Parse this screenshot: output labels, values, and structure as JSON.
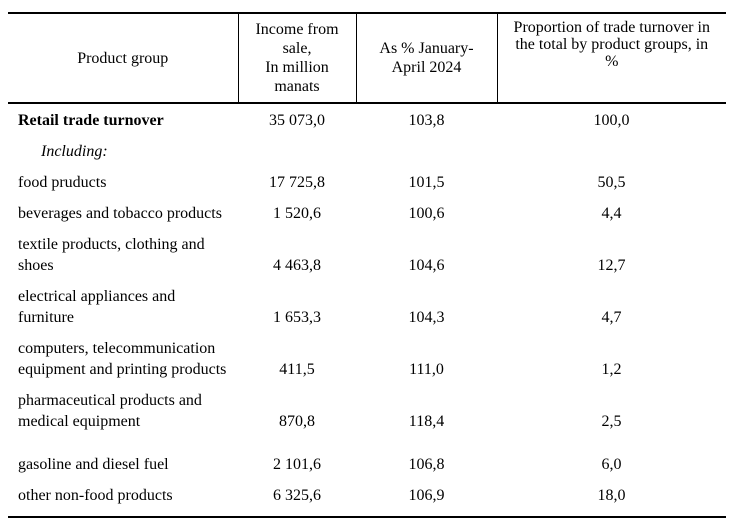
{
  "table": {
    "columns": [
      {
        "label": "Product group"
      },
      {
        "label": "Income from\nsale,\nIn million\nmanats"
      },
      {
        "label": "As % January-\nApril 2024"
      },
      {
        "label": "Proportion of trade turnover in\nthe total by product groups, in\n%"
      }
    ],
    "rows": [
      {
        "name": "Retail trade turnover",
        "income": "35 073,0",
        "percent": "103,8",
        "proportion": "100,0"
      },
      {
        "name": "Including:",
        "income": "",
        "percent": "",
        "proportion": ""
      },
      {
        "name": "food pruducts",
        "income": "17 725,8",
        "percent": "101,5",
        "proportion": "50,5"
      },
      {
        "name": "beverages and tobacco products",
        "income": "1 520,6",
        "percent": "100,6",
        "proportion": "4,4"
      },
      {
        "name": "textile products, clothing and\nshoes",
        "income": "4 463,8",
        "percent": "104,6",
        "proportion": "12,7"
      },
      {
        "name": "electrical appliances and\nfurniture",
        "income": "1 653,3",
        "percent": "104,3",
        "proportion": "4,7"
      },
      {
        "name": "computers, telecommunication\nequipment and printing products",
        "income": "411,5",
        "percent": "111,0",
        "proportion": "1,2"
      },
      {
        "name": "pharmaceutical products and\nmedical equipment",
        "income": "870,8",
        "percent": "118,4",
        "proportion": "2,5"
      },
      {
        "name": "gasoline and diesel fuel",
        "income": "2 101,6",
        "percent": "106,8",
        "proportion": "6,0"
      },
      {
        "name": "other non-food products",
        "income": "6 325,6",
        "percent": "106,9",
        "proportion": "18,0"
      }
    ]
  },
  "chart_data": {
    "type": "table",
    "title": "Retail trade turnover by product groups",
    "columns": [
      "Product group",
      "Income from sale, In million manats",
      "As % January-April 2024",
      "Proportion of trade turnover in the total by product groups, in %"
    ],
    "rows": [
      [
        "Retail trade turnover",
        35073.0,
        103.8,
        100.0
      ],
      [
        "Including:",
        null,
        null,
        null
      ],
      [
        "food pruducts",
        17725.8,
        101.5,
        50.5
      ],
      [
        "beverages and tobacco products",
        1520.6,
        100.6,
        4.4
      ],
      [
        "textile products, clothing and shoes",
        4463.8,
        104.6,
        12.7
      ],
      [
        "electrical appliances and furniture",
        1653.3,
        104.3,
        4.7
      ],
      [
        "computers, telecommunication equipment and printing products",
        411.5,
        111.0,
        1.2
      ],
      [
        "pharmaceutical products and medical equipment",
        870.8,
        118.4,
        2.5
      ],
      [
        "gasoline and diesel fuel",
        2101.6,
        106.8,
        6.0
      ],
      [
        "other non-food products",
        6325.6,
        106.9,
        18.0
      ]
    ],
    "notes": "Decimal comma formatting; thousands separated by spaces; first data row is bold total; 'Including:' is an italic indented subheading row"
  },
  "colors": {
    "text": "#000000",
    "background": "#ffffff",
    "rule": "#000000"
  }
}
